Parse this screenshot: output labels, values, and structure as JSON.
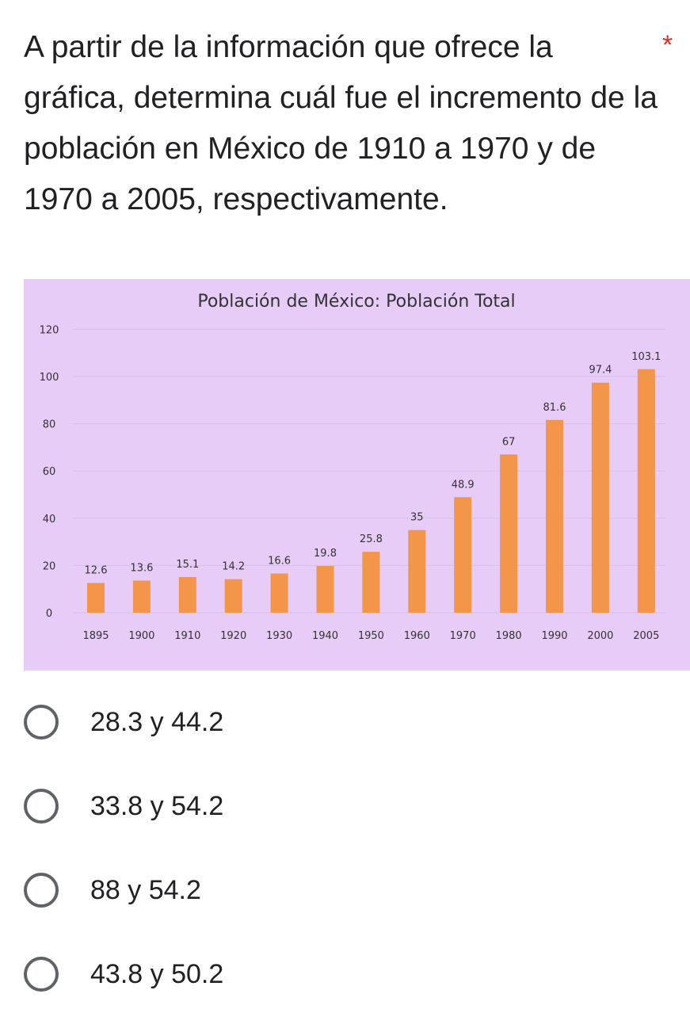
{
  "question": {
    "text": "A partir de la información que ofrece la gráfica, determina cuál fue el incremento de la población en México de 1910 a 1970 y de 1970 a 2005, respectivamente.",
    "required_mark": "*"
  },
  "colors": {
    "chart_background": "#e6ccf7",
    "bar": "#f4964a",
    "required": "#d93025",
    "radio_border": "#5f6368"
  },
  "options": [
    {
      "label": "28.3 y 44.2"
    },
    {
      "label": "33.8 y 54.2"
    },
    {
      "label": "88 y 54.2"
    },
    {
      "label": "43.8 y 50.2"
    }
  ],
  "chart_data": {
    "type": "bar",
    "title": "Población de México: Población Total",
    "categories": [
      "1895",
      "1900",
      "1910",
      "1920",
      "1930",
      "1940",
      "1950",
      "1960",
      "1970",
      "1980",
      "1990",
      "2000",
      "2005"
    ],
    "values": [
      12.6,
      13.6,
      15.1,
      14.2,
      16.6,
      19.8,
      25.8,
      35,
      48.9,
      67,
      81.6,
      97.4,
      103.1
    ],
    "value_labels": [
      "12.6",
      "13.6",
      "15.1",
      "14.2",
      "16.6",
      "19.8",
      "25.8",
      "35",
      "48.9",
      "67",
      "81.6",
      "97.4",
      "103.1"
    ],
    "y_ticks": [
      0,
      20,
      40,
      60,
      80,
      100,
      120
    ],
    "ylim": [
      0,
      120
    ],
    "grid": true,
    "xlabel": "",
    "ylabel": ""
  }
}
